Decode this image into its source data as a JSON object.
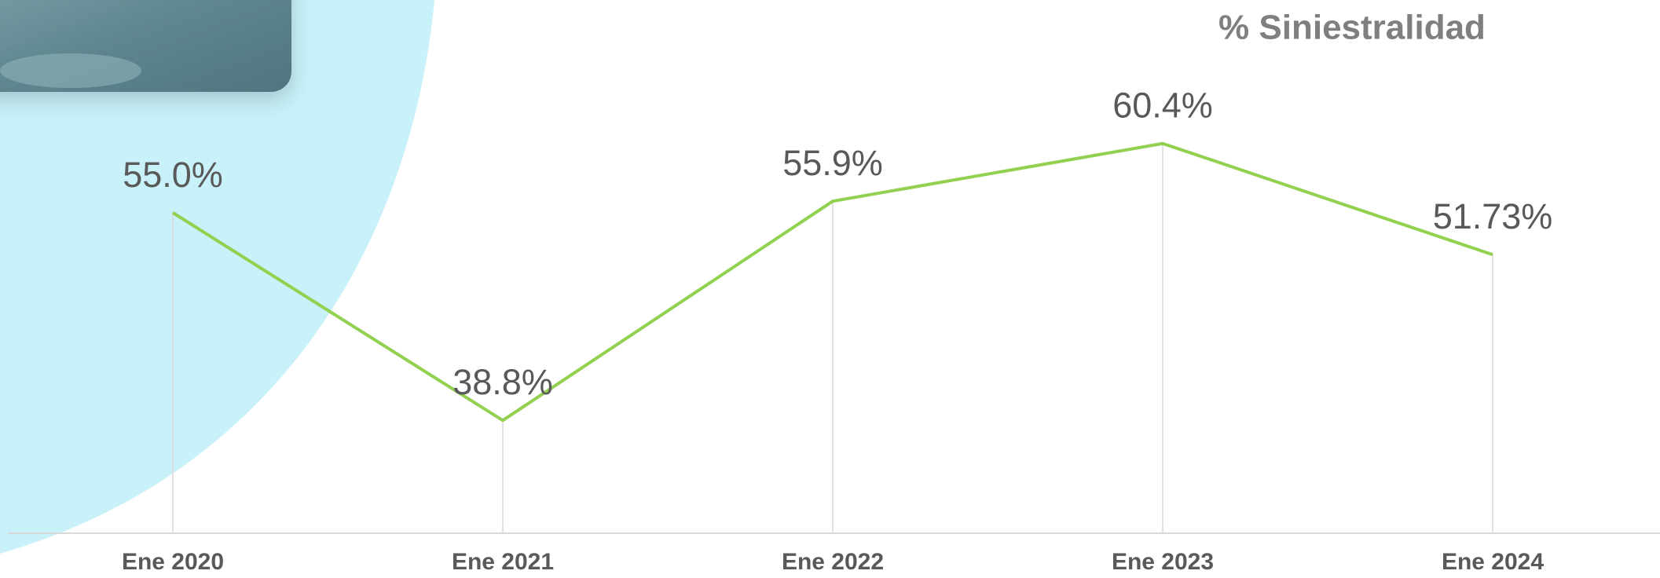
{
  "chart_data": {
    "type": "line",
    "title": "% Siniestralidad",
    "categories": [
      "Ene 2020",
      "Ene 2021",
      "Ene 2022",
      "Ene 2023",
      "Ene 2024"
    ],
    "series": [
      {
        "color": "#92d050",
        "values": [
          55.0,
          38.8,
          55.9,
          60.4,
          51.73
        ],
        "value_labels": [
          "55.0%",
          "38.8%",
          "55.9%",
          "60.4%",
          "51.73%"
        ]
      }
    ],
    "ylim": [
      30,
      70
    ],
    "drop_lines": true
  }
}
